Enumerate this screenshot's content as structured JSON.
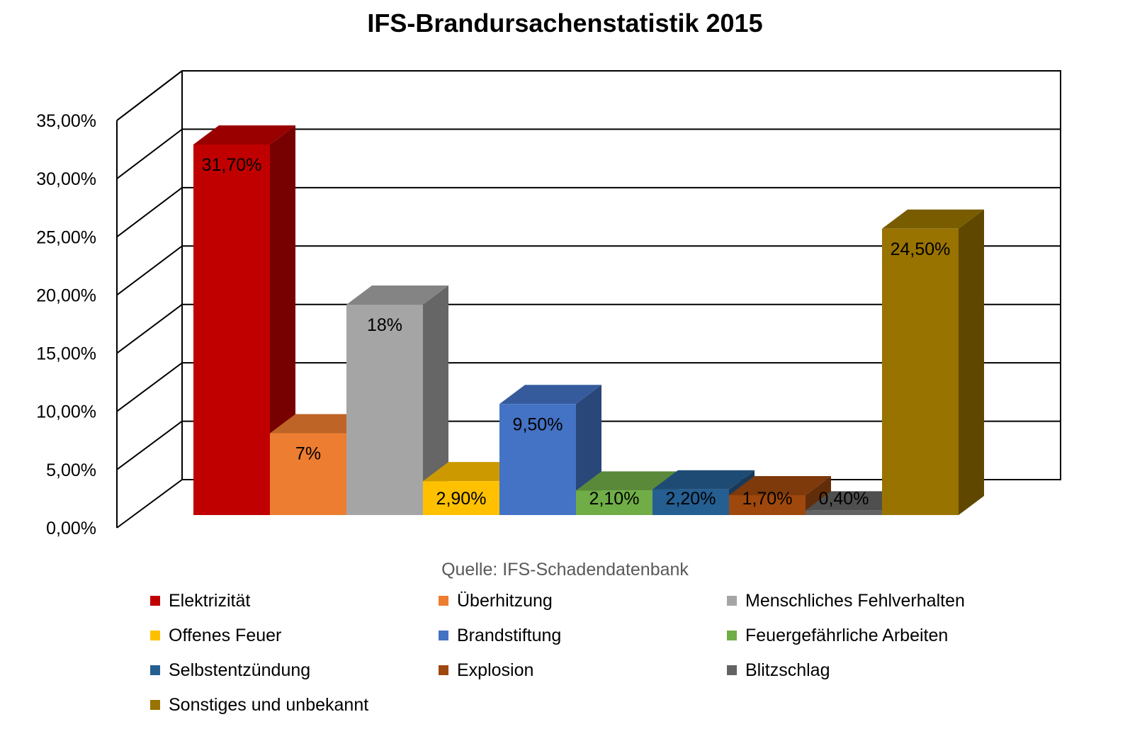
{
  "chart_data": {
    "type": "bar",
    "title": "IFS-Brandursachenstatistik 2015",
    "note": "Quelle: IFS-Schadendatenbank",
    "categories": [
      "Elektrizität",
      "Überhitzung",
      "Menschliches Fehlverhalten",
      "Offenes Feuer",
      "Brandstiftung",
      "Feuergefährliche Arbeiten",
      "Selbstentzündung",
      "Explosion",
      "Blitzschlag",
      "Sonstiges und unbekannt"
    ],
    "values": [
      31.7,
      7,
      18,
      2.9,
      9.5,
      2.1,
      2.2,
      1.7,
      0.4,
      24.5
    ],
    "data_labels": [
      "31,70%",
      "7%",
      "18%",
      "2,90%",
      "9,50%",
      "2,10%",
      "2,20%",
      "1,70%",
      "0,40%",
      "24,50%"
    ],
    "colors": [
      "#C00000",
      "#ED7D31",
      "#A5A5A5",
      "#FFC000",
      "#4472C4",
      "#70AD47",
      "#255E91",
      "#9E480E",
      "#636363",
      "#997300"
    ],
    "ylim": [
      0,
      35
    ],
    "yticks": [
      0,
      5,
      10,
      15,
      20,
      25,
      30,
      35
    ],
    "ytick_labels": [
      "0,00%",
      "5,00%",
      "10,00%",
      "15,00%",
      "20,00%",
      "25,00%",
      "30,00%",
      "35,00%"
    ],
    "grid": true,
    "legend_position": "bottom",
    "style": "3d-column"
  }
}
